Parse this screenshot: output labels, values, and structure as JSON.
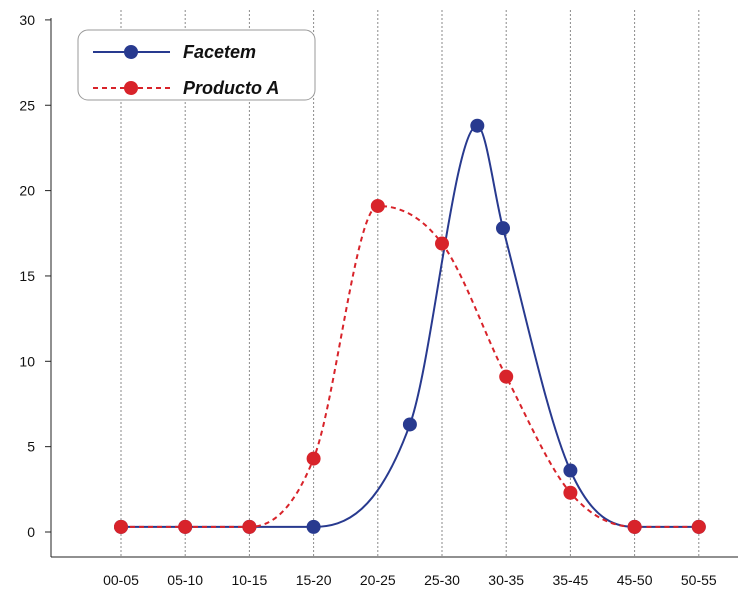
{
  "chart_data": {
    "type": "line",
    "title": "",
    "xlabel": "",
    "ylabel": "",
    "categories": [
      "00-05",
      "05-10",
      "10-15",
      "15-20",
      "20-25",
      "25-30",
      "30-35",
      "35-45",
      "45-50",
      "50-55"
    ],
    "ylim": [
      0,
      30
    ],
    "yticks": [
      "0",
      "5",
      "10",
      "15",
      "20",
      "25",
      "30"
    ],
    "grid": "vertical dashed",
    "legend_position": "top-left",
    "series": [
      {
        "name": "Facetem",
        "color": "#283a8f",
        "line_style": "solid",
        "points": [
          {
            "x": 0,
            "y": 0.3
          },
          {
            "x": 1,
            "y": 0.3
          },
          {
            "x": 2,
            "y": 0.3
          },
          {
            "x": 3,
            "y": 0.3
          },
          {
            "x": 4.5,
            "y": 6.3
          },
          {
            "x": 5.55,
            "y": 23.8
          },
          {
            "x": 5.95,
            "y": 17.8
          },
          {
            "x": 7,
            "y": 3.6
          },
          {
            "x": 8,
            "y": 0.3
          },
          {
            "x": 9,
            "y": 0.3
          }
        ]
      },
      {
        "name": "Producto A",
        "color": "#d8232a",
        "line_style": "dashed",
        "points": [
          {
            "x": 0,
            "y": 0.3
          },
          {
            "x": 1,
            "y": 0.3
          },
          {
            "x": 2,
            "y": 0.3
          },
          {
            "x": 3,
            "y": 4.3
          },
          {
            "x": 4,
            "y": 19.1
          },
          {
            "x": 5,
            "y": 16.9
          },
          {
            "x": 6,
            "y": 9.1
          },
          {
            "x": 7,
            "y": 2.3
          },
          {
            "x": 8,
            "y": 0.3
          },
          {
            "x": 9,
            "y": 0.3
          }
        ]
      }
    ]
  }
}
